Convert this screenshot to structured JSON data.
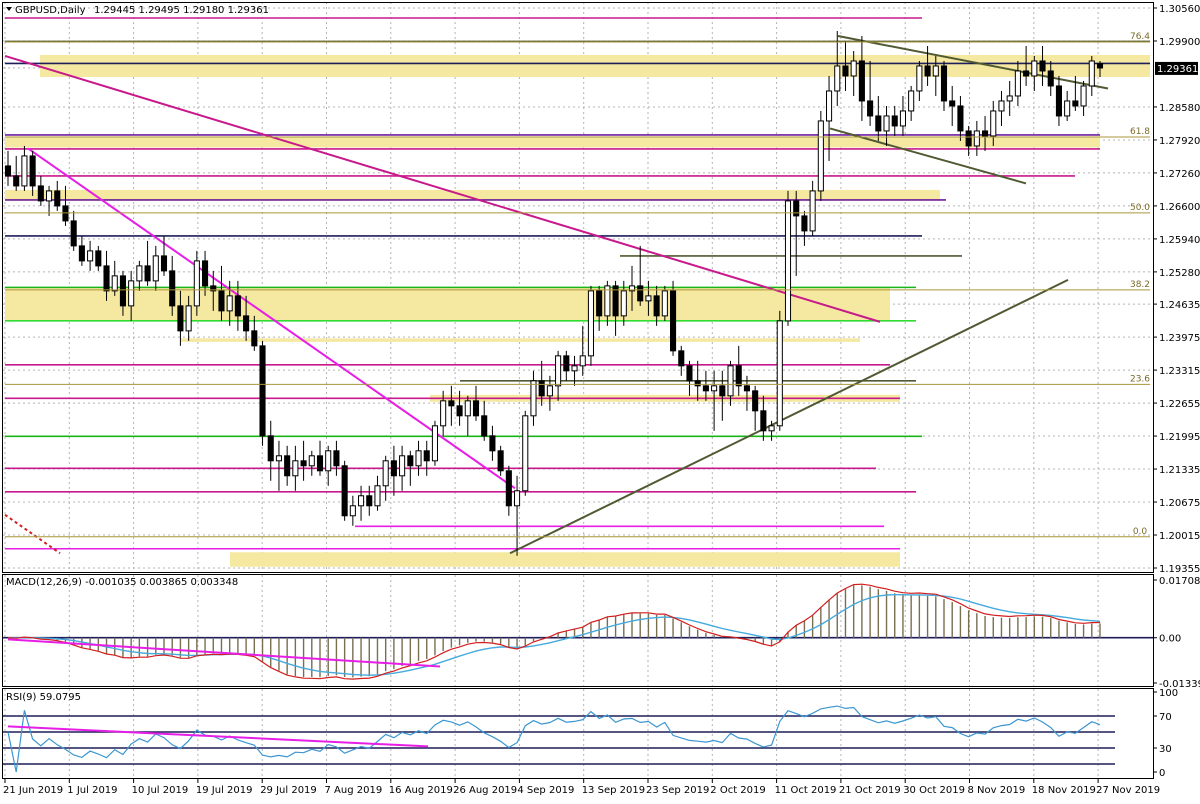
{
  "header": {
    "symbol": "GBPUSD,Daily",
    "ohlc": "1.29445 1.29495 1.29180 1.29361"
  },
  "macd_header": "MACD(12,26,9) -0.001035 0.003865 0.003348",
  "rsi_header": "RSI(9) 59.0795",
  "colors": {
    "background": "#ffffff",
    "grid": "#b4b4b4",
    "candle": "#000000",
    "support_zone": "#f5e8a0",
    "magenta_line": "#c8198c",
    "bright_magenta": "#e61ee6",
    "green_line": "#19b419",
    "bright_green": "#32dc32",
    "navy_line": "#1e1e5a",
    "olive_line": "#505a32",
    "fib_line": "#aa9637",
    "purple_line": "#6e1ea0",
    "macd_signal": "#d21e1e",
    "macd_line": "#46aadc",
    "histogram": "#7a6e50",
    "rsi_line": "#3c96d2"
  },
  "chart_data": [
    {
      "type": "candlestick",
      "panel": "price",
      "price_axis": [
        "1.30560",
        "1.29900",
        "1.29361",
        "1.28580",
        "1.27920",
        "1.27260",
        "1.26600",
        "1.25940",
        "1.25280",
        "1.24635",
        "1.23975",
        "1.23315",
        "1.22655",
        "1.21995",
        "1.21335",
        "1.20675",
        "1.20015",
        "1.19355"
      ],
      "current_price": "1.29361",
      "ylim": [
        1.19355,
        1.3056
      ],
      "date_axis": [
        "21 Jun 2019",
        "1 Jul 2019",
        "10 Jul 2019",
        "19 Jul 2019",
        "29 Jul 2019",
        "7 Aug 2019",
        "16 Aug 2019",
        "26 Aug 2019",
        "4 Sep 2019",
        "13 Sep 2019",
        "23 Sep 2019",
        "2 Oct 2019",
        "11 Oct 2019",
        "21 Oct 2019",
        "30 Oct 2019",
        "8 Nov 2019",
        "18 Nov 2019",
        "27 Nov 2019"
      ],
      "fib_levels": [
        {
          "label": "76.4",
          "value": 1.2988
        },
        {
          "label": "61.8",
          "value": 1.2798
        },
        {
          "label": "50.0",
          "value": 1.2646
        },
        {
          "label": "38.2",
          "value": 1.2492
        },
        {
          "label": "23.6",
          "value": 1.2303
        },
        {
          "label": "0.0",
          "value": 1.1998
        }
      ],
      "candles_ohlc": [
        [
          1.274,
          1.277,
          1.27,
          1.272
        ],
        [
          1.272,
          1.276,
          1.269,
          1.27
        ],
        [
          1.27,
          1.278,
          1.269,
          1.276
        ],
        [
          1.276,
          1.277,
          1.268,
          1.27
        ],
        [
          1.27,
          1.272,
          1.266,
          1.267
        ],
        [
          1.267,
          1.27,
          1.264,
          1.269
        ],
        [
          1.269,
          1.271,
          1.265,
          1.266
        ],
        [
          1.266,
          1.27,
          1.262,
          1.263
        ],
        [
          1.263,
          1.265,
          1.257,
          1.258
        ],
        [
          1.258,
          1.26,
          1.254,
          1.255
        ],
        [
          1.255,
          1.259,
          1.253,
          1.257
        ],
        [
          1.257,
          1.258,
          1.253,
          1.254
        ],
        [
          1.254,
          1.257,
          1.247,
          1.249
        ],
        [
          1.249,
          1.255,
          1.248,
          1.252
        ],
        [
          1.252,
          1.253,
          1.244,
          1.246
        ],
        [
          1.246,
          1.253,
          1.243,
          1.251
        ],
        [
          1.251,
          1.255,
          1.249,
          1.254
        ],
        [
          1.254,
          1.259,
          1.25,
          1.251
        ],
        [
          1.251,
          1.258,
          1.249,
          1.256
        ],
        [
          1.256,
          1.26,
          1.252,
          1.253
        ],
        [
          1.253,
          1.256,
          1.244,
          1.246
        ],
        [
          1.246,
          1.249,
          1.238,
          1.241
        ],
        [
          1.241,
          1.248,
          1.239,
          1.246
        ],
        [
          1.246,
          1.257,
          1.244,
          1.255
        ],
        [
          1.255,
          1.257,
          1.248,
          1.25
        ],
        [
          1.25,
          1.253,
          1.245,
          1.249
        ],
        [
          1.249,
          1.254,
          1.243,
          1.245
        ],
        [
          1.245,
          1.251,
          1.242,
          1.248
        ],
        [
          1.248,
          1.251,
          1.241,
          1.244
        ],
        [
          1.244,
          1.248,
          1.239,
          1.241
        ],
        [
          1.241,
          1.244,
          1.237,
          1.238
        ],
        [
          1.238,
          1.239,
          1.218,
          1.22
        ],
        [
          1.22,
          1.223,
          1.211,
          1.215
        ],
        [
          1.215,
          1.219,
          1.209,
          1.216
        ],
        [
          1.216,
          1.218,
          1.21,
          1.212
        ],
        [
          1.212,
          1.218,
          1.209,
          1.215
        ],
        [
          1.215,
          1.219,
          1.211,
          1.214
        ],
        [
          1.214,
          1.217,
          1.212,
          1.216
        ],
        [
          1.216,
          1.219,
          1.212,
          1.213
        ],
        [
          1.213,
          1.218,
          1.21,
          1.217
        ],
        [
          1.217,
          1.219,
          1.212,
          1.214
        ],
        [
          1.214,
          1.215,
          1.203,
          1.204
        ],
        [
          1.204,
          1.208,
          1.202,
          1.206
        ],
        [
          1.206,
          1.21,
          1.203,
          1.208
        ],
        [
          1.208,
          1.21,
          1.204,
          1.206
        ],
        [
          1.206,
          1.212,
          1.205,
          1.21
        ],
        [
          1.21,
          1.216,
          1.207,
          1.215
        ],
        [
          1.215,
          1.218,
          1.208,
          1.212
        ],
        [
          1.212,
          1.218,
          1.209,
          1.216
        ],
        [
          1.216,
          1.217,
          1.21,
          1.214
        ],
        [
          1.214,
          1.219,
          1.212,
          1.217
        ],
        [
          1.217,
          1.219,
          1.212,
          1.215
        ],
        [
          1.215,
          1.223,
          1.214,
          1.222
        ],
        [
          1.222,
          1.229,
          1.22,
          1.227
        ],
        [
          1.227,
          1.23,
          1.222,
          1.226
        ],
        [
          1.226,
          1.229,
          1.222,
          1.224
        ],
        [
          1.224,
          1.228,
          1.22,
          1.227
        ],
        [
          1.227,
          1.23,
          1.223,
          1.224
        ],
        [
          1.224,
          1.227,
          1.219,
          1.22
        ],
        [
          1.22,
          1.222,
          1.215,
          1.217
        ],
        [
          1.217,
          1.218,
          1.212,
          1.213
        ],
        [
          1.213,
          1.214,
          1.204,
          1.206
        ],
        [
          1.206,
          1.212,
          1.196,
          1.209
        ],
        [
          1.209,
          1.225,
          1.208,
          1.224
        ],
        [
          1.224,
          1.233,
          1.222,
          1.231
        ],
        [
          1.231,
          1.235,
          1.226,
          1.228
        ],
        [
          1.228,
          1.232,
          1.225,
          1.23
        ],
        [
          1.23,
          1.237,
          1.227,
          1.236
        ],
        [
          1.236,
          1.237,
          1.231,
          1.233
        ],
        [
          1.233,
          1.236,
          1.23,
          1.234
        ],
        [
          1.234,
          1.242,
          1.232,
          1.236
        ],
        [
          1.236,
          1.25,
          1.234,
          1.249
        ],
        [
          1.249,
          1.25,
          1.241,
          1.244
        ],
        [
          1.244,
          1.251,
          1.242,
          1.25
        ],
        [
          1.25,
          1.251,
          1.24,
          1.244
        ],
        [
          1.244,
          1.251,
          1.242,
          1.249
        ],
        [
          1.249,
          1.254,
          1.245,
          1.25
        ],
        [
          1.25,
          1.258,
          1.246,
          1.247
        ],
        [
          1.247,
          1.251,
          1.244,
          1.248
        ],
        [
          1.248,
          1.25,
          1.242,
          1.244
        ],
        [
          1.244,
          1.25,
          1.243,
          1.249
        ],
        [
          1.249,
          1.251,
          1.236,
          1.237
        ],
        [
          1.237,
          1.238,
          1.232,
          1.234
        ],
        [
          1.234,
          1.235,
          1.228,
          1.231
        ],
        [
          1.231,
          1.235,
          1.227,
          1.23
        ],
        [
          1.23,
          1.233,
          1.227,
          1.229
        ],
        [
          1.229,
          1.233,
          1.221,
          1.23
        ],
        [
          1.23,
          1.233,
          1.223,
          1.228
        ],
        [
          1.228,
          1.235,
          1.226,
          1.234
        ],
        [
          1.234,
          1.238,
          1.228,
          1.23
        ],
        [
          1.23,
          1.232,
          1.225,
          1.229
        ],
        [
          1.229,
          1.23,
          1.221,
          1.225
        ],
        [
          1.225,
          1.228,
          1.219,
          1.221
        ],
        [
          1.221,
          1.223,
          1.219,
          1.222
        ],
        [
          1.222,
          1.245,
          1.221,
          1.243
        ],
        [
          1.243,
          1.269,
          1.242,
          1.267
        ],
        [
          1.267,
          1.269,
          1.252,
          1.264
        ],
        [
          1.264,
          1.265,
          1.258,
          1.261
        ],
        [
          1.261,
          1.271,
          1.26,
          1.269
        ],
        [
          1.269,
          1.285,
          1.267,
          1.283
        ],
        [
          1.283,
          1.292,
          1.275,
          1.289
        ],
        [
          1.289,
          1.301,
          1.286,
          1.294
        ],
        [
          1.294,
          1.299,
          1.289,
          1.292
        ],
        [
          1.292,
          1.297,
          1.288,
          1.295
        ],
        [
          1.295,
          1.3,
          1.283,
          1.287
        ],
        [
          1.287,
          1.295,
          1.282,
          1.284
        ],
        [
          1.284,
          1.288,
          1.279,
          1.281
        ],
        [
          1.281,
          1.286,
          1.278,
          1.284
        ],
        [
          1.284,
          1.286,
          1.28,
          1.282
        ],
        [
          1.282,
          1.288,
          1.28,
          1.285
        ],
        [
          1.285,
          1.29,
          1.283,
          1.289
        ],
        [
          1.289,
          1.295,
          1.287,
          1.294
        ],
        [
          1.294,
          1.298,
          1.29,
          1.292
        ],
        [
          1.292,
          1.296,
          1.288,
          1.294
        ],
        [
          1.294,
          1.295,
          1.285,
          1.287
        ],
        [
          1.287,
          1.29,
          1.282,
          1.286
        ],
        [
          1.286,
          1.288,
          1.279,
          1.281
        ],
        [
          1.281,
          1.282,
          1.276,
          1.278
        ],
        [
          1.278,
          1.283,
          1.276,
          1.281
        ],
        [
          1.281,
          1.284,
          1.277,
          1.28
        ],
        [
          1.28,
          1.287,
          1.278,
          1.285
        ],
        [
          1.285,
          1.289,
          1.282,
          1.287
        ],
        [
          1.287,
          1.291,
          1.284,
          1.288
        ],
        [
          1.288,
          1.295,
          1.286,
          1.293
        ],
        [
          1.293,
          1.298,
          1.29,
          1.292
        ],
        [
          1.292,
          1.296,
          1.289,
          1.295
        ],
        [
          1.295,
          1.298,
          1.29,
          1.293
        ],
        [
          1.293,
          1.295,
          1.288,
          1.29
        ],
        [
          1.29,
          1.292,
          1.282,
          1.284
        ],
        [
          1.284,
          1.289,
          1.283,
          1.287
        ],
        [
          1.287,
          1.292,
          1.285,
          1.286
        ],
        [
          1.286,
          1.291,
          1.284,
          1.29
        ],
        [
          1.29,
          1.296,
          1.288,
          1.295
        ],
        [
          1.2945,
          1.295,
          1.2918,
          1.2936
        ]
      ],
      "levels": [
        {
          "value": 1.3036,
          "color": "magenta_line"
        },
        {
          "value": 1.2989,
          "color": "olive_line"
        },
        {
          "value": 1.2945,
          "color": "navy_line"
        },
        {
          "value": 1.2802,
          "color": "purple_line"
        },
        {
          "value": 1.2774,
          "color": "magenta_line"
        },
        {
          "value": 1.272,
          "color": "magenta_line"
        },
        {
          "value": 1.2672,
          "color": "purple_line"
        },
        {
          "value": 1.26,
          "color": "navy_line"
        },
        {
          "value": 1.256,
          "color": "olive_line"
        },
        {
          "value": 1.2497,
          "color": "green_line"
        },
        {
          "value": 1.243,
          "color": "bright_green"
        },
        {
          "value": 1.2342,
          "color": "magenta_line"
        },
        {
          "value": 1.231,
          "color": "olive_line"
        },
        {
          "value": 1.2275,
          "color": "magenta_line"
        },
        {
          "value": 1.2199,
          "color": "green_line"
        },
        {
          "value": 1.2135,
          "color": "magenta_line"
        },
        {
          "value": 1.2088,
          "color": "magenta_line"
        },
        {
          "value": 1.2019,
          "color": "bright_magenta"
        },
        {
          "value": 1.1974,
          "color": "bright_magenta"
        }
      ],
      "zones": [
        {
          "from": 1.2918,
          "to": 1.2962
        },
        {
          "from": 1.2777,
          "to": 1.2799
        },
        {
          "from": 1.267,
          "to": 1.2692
        },
        {
          "from": 1.243,
          "to": 1.2497
        },
        {
          "from": 1.2388,
          "to": 1.2395
        },
        {
          "from": 1.2268,
          "to": 1.2282
        },
        {
          "from": 1.1938,
          "to": 1.1967
        }
      ]
    },
    {
      "type": "bar",
      "panel": "macd",
      "name": "MACD(12,26,9)",
      "values_text": [
        "-0.001035",
        "0.003865",
        "0.003348"
      ],
      "axis": [
        "0.017089",
        "0.00",
        "-0.013398"
      ],
      "ylim": [
        -0.013398,
        0.017089
      ]
    },
    {
      "type": "line",
      "panel": "rsi",
      "name": "RSI(9)",
      "value": 59.0795,
      "axis": [
        "100",
        "70",
        "30",
        "0"
      ],
      "levels": [
        70,
        50,
        30,
        10
      ],
      "ylim": [
        0,
        100
      ]
    }
  ]
}
